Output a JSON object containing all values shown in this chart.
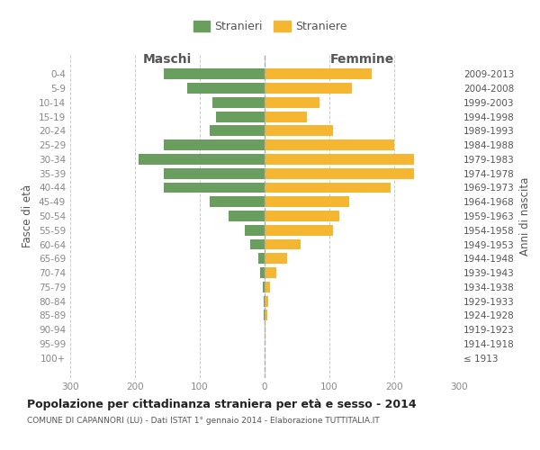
{
  "age_groups": [
    "100+",
    "95-99",
    "90-94",
    "85-89",
    "80-84",
    "75-79",
    "70-74",
    "65-69",
    "60-64",
    "55-59",
    "50-54",
    "45-49",
    "40-44",
    "35-39",
    "30-34",
    "25-29",
    "20-24",
    "15-19",
    "10-14",
    "5-9",
    "0-4"
  ],
  "birth_years": [
    "≤ 1913",
    "1914-1918",
    "1919-1923",
    "1924-1928",
    "1929-1933",
    "1934-1938",
    "1939-1943",
    "1944-1948",
    "1949-1953",
    "1954-1958",
    "1959-1963",
    "1964-1968",
    "1969-1973",
    "1974-1978",
    "1979-1983",
    "1984-1988",
    "1989-1993",
    "1994-1998",
    "1999-2003",
    "2004-2008",
    "2009-2013"
  ],
  "maschi": [
    0,
    0,
    0,
    1,
    2,
    3,
    7,
    10,
    22,
    30,
    55,
    85,
    155,
    155,
    195,
    155,
    85,
    75,
    80,
    120,
    155
  ],
  "femmine": [
    0,
    0,
    2,
    4,
    5,
    8,
    18,
    35,
    55,
    105,
    115,
    130,
    195,
    230,
    230,
    200,
    105,
    65,
    85,
    135,
    165
  ],
  "male_color": "#6a9e5e",
  "female_color": "#f5b731",
  "male_label": "Stranieri",
  "female_label": "Straniere",
  "xlabel_left": "Maschi",
  "xlabel_right": "Femmine",
  "ylabel_left": "Fasce di età",
  "ylabel_right": "Anni di nascita",
  "xlim": 300,
  "title": "Popolazione per cittadinanza straniera per età e sesso - 2014",
  "subtitle": "COMUNE DI CAPANNORI (LU) - Dati ISTAT 1° gennaio 2014 - Elaborazione TUTTITALIA.IT",
  "bg_color": "#ffffff",
  "grid_color": "#cccccc",
  "tick_color": "#888888",
  "text_color": "#555555"
}
